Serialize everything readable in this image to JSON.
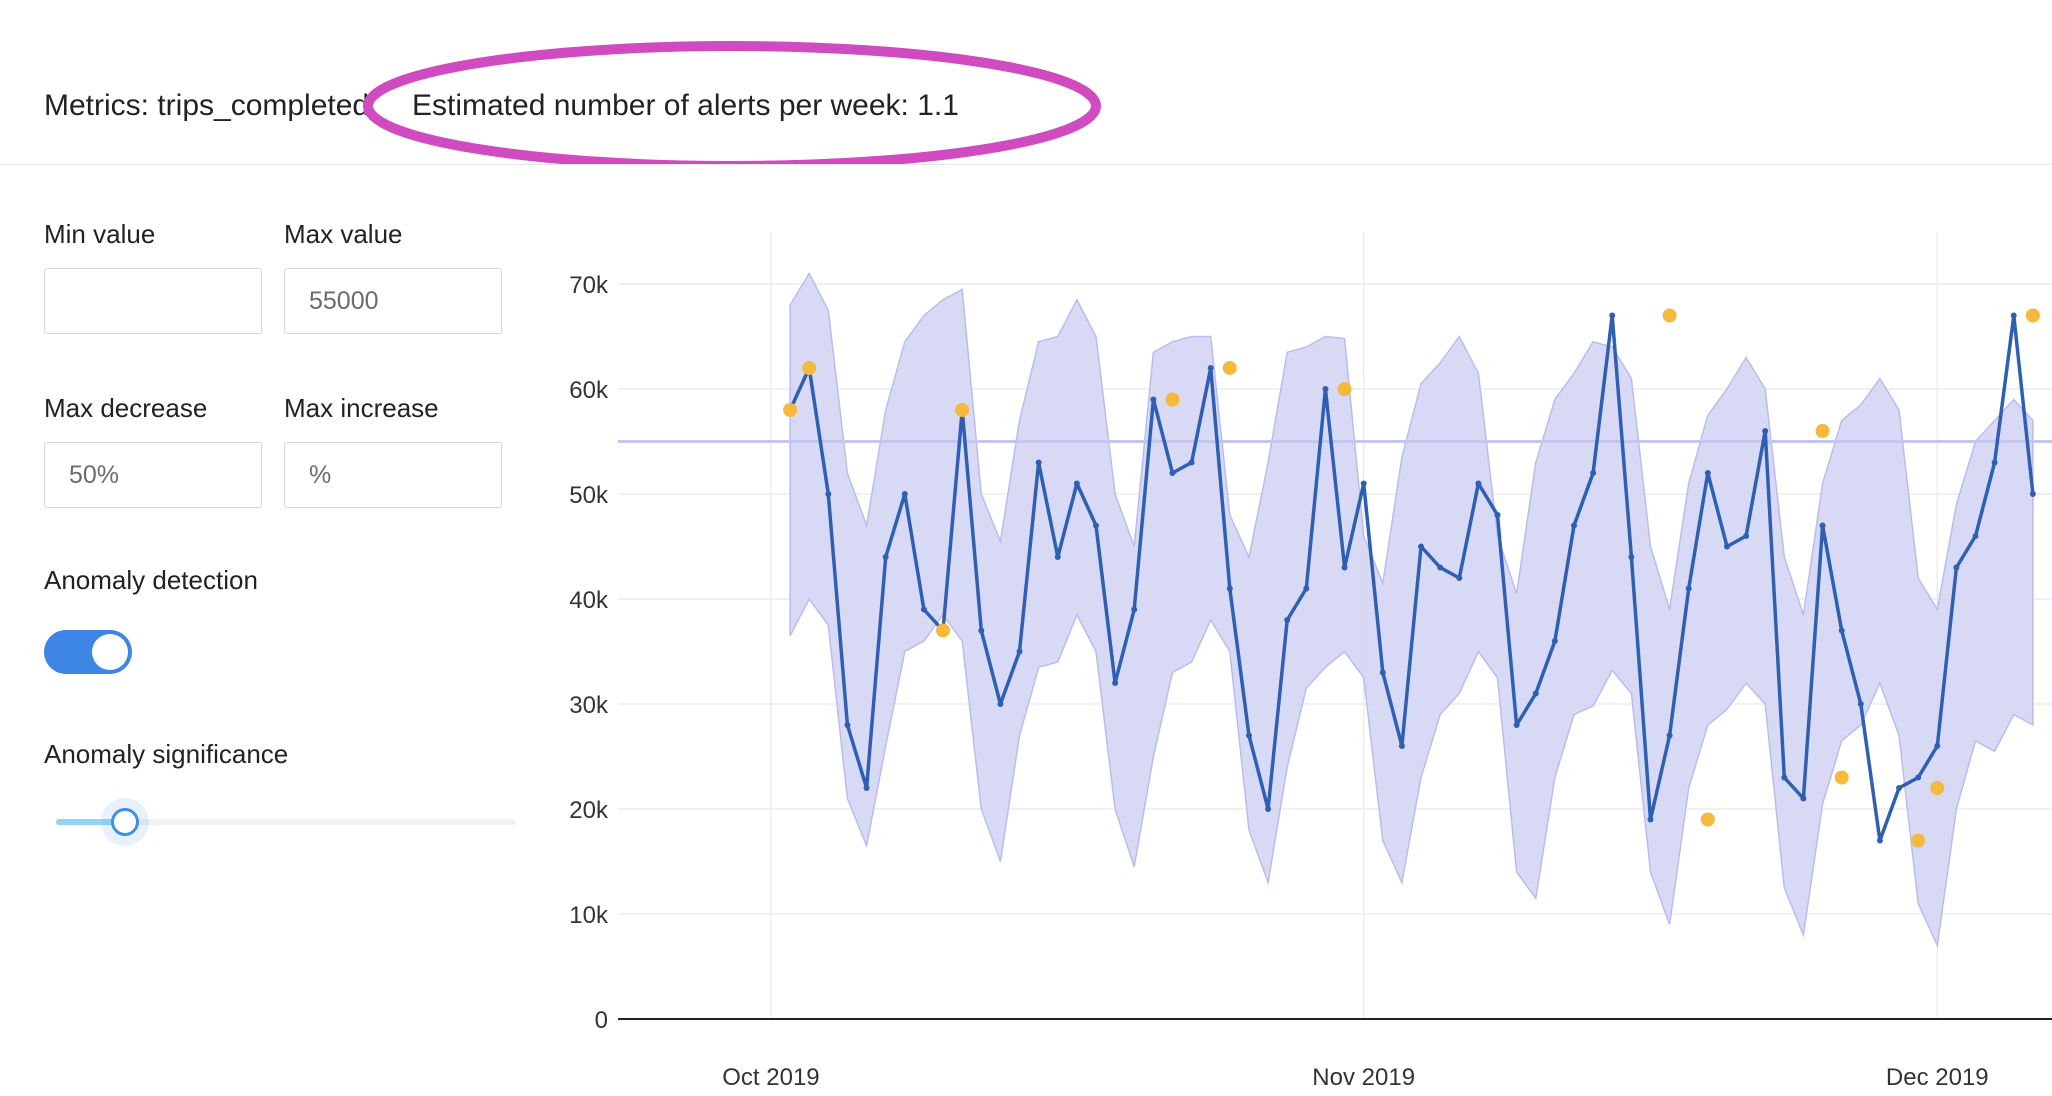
{
  "header": {
    "metrics_text": "Metrics: trips_completed",
    "alerts_text": "Estimated number of alerts per week: 1.1",
    "highlight_color": "#d04ac0"
  },
  "controls": {
    "min_value": {
      "label": "Min value",
      "value": "",
      "placeholder": ""
    },
    "max_value": {
      "label": "Max value",
      "value": "",
      "placeholder": "55000"
    },
    "max_decrease": {
      "label": "Max decrease",
      "value": "",
      "placeholder": "50%"
    },
    "max_increase": {
      "label": "Max increase",
      "value": "",
      "placeholder": "%"
    },
    "anomaly_detection": {
      "label": "Anomaly detection",
      "enabled": true
    },
    "anomaly_significance": {
      "label": "Anomaly significance",
      "fraction": 0.15
    }
  },
  "colors": {
    "accent": "#3e86e6",
    "line": "#2f5fb3",
    "band": "#d4d6f4",
    "anomaly": "#f5b93b",
    "threshold": "#c3c7f0"
  },
  "chart_data": {
    "type": "line",
    "title": "",
    "xlabel": "",
    "ylabel": "",
    "ylim": [
      0,
      70000
    ],
    "yticks": [
      0,
      10000,
      20000,
      30000,
      40000,
      50000,
      60000,
      70000
    ],
    "ytick_labels": [
      "0",
      "10k",
      "20k",
      "30k",
      "40k",
      "50k",
      "60k",
      "70k"
    ],
    "xticks": [
      "2019-10-01",
      "2019-11-01",
      "2019-12-01"
    ],
    "xtick_labels": [
      "Oct 2019",
      "Nov 2019",
      "Dec 2019"
    ],
    "xlim": [
      "2019-09-23",
      "2019-12-07"
    ],
    "grid": true,
    "threshold_line": 55000,
    "start_date": "2019-10-02",
    "series": [
      {
        "values": [
          58000,
          62000,
          50000,
          28000,
          22000,
          44000,
          50000,
          39000,
          37000,
          58000,
          37000,
          30000,
          35000,
          53000,
          44000,
          51000,
          47000,
          32000,
          39000,
          59000,
          52000,
          53000,
          62000,
          41000,
          27000,
          20000,
          38000,
          41000,
          60000,
          43000,
          51000,
          33000,
          26000,
          45000,
          43000,
          42000,
          51000,
          48000,
          28000,
          31000,
          36000,
          47000,
          52000,
          67000,
          44000,
          19000,
          27000,
          41000,
          52000,
          45000,
          46000,
          56000,
          23000,
          21000,
          47000,
          37000,
          30000,
          17000,
          22000,
          23000,
          26000,
          43000,
          46000,
          53000,
          67000,
          50000
        ]
      }
    ],
    "band_upper": [
      68000,
      71000,
      67500,
      52000,
      47000,
      58000,
      64500,
      67000,
      68500,
      69500,
      50000,
      45500,
      57000,
      64500,
      65000,
      68500,
      65000,
      50000,
      45000,
      63500,
      64500,
      65000,
      65000,
      48000,
      44000,
      53000,
      63500,
      64000,
      65000,
      64800,
      46000,
      41500,
      53500,
      60500,
      62500,
      65000,
      61500,
      46000,
      40500,
      53000,
      59000,
      61500,
      64500,
      64000,
      61000,
      45000,
      39000,
      51000,
      57500,
      60000,
      63000,
      60000,
      44000,
      38500,
      51000,
      57000,
      58500,
      61000,
      58000,
      42000,
      39000,
      49000,
      55000,
      57000,
      59000,
      57000
    ],
    "band_lower": [
      36500,
      40000,
      37500,
      21000,
      16500,
      26000,
      35000,
      36000,
      38500,
      36000,
      20000,
      15000,
      27000,
      33500,
      34000,
      38500,
      35000,
      20000,
      14500,
      25000,
      33000,
      34000,
      38000,
      35000,
      18000,
      13000,
      24000,
      31500,
      33500,
      35000,
      32500,
      17000,
      13000,
      23000,
      29000,
      31000,
      35000,
      32500,
      14000,
      11500,
      23000,
      29000,
      29800,
      33200,
      31000,
      14000,
      9000,
      22000,
      28000,
      29500,
      32000,
      30000,
      12500,
      8000,
      20500,
      26500,
      28000,
      32000,
      27000,
      11000,
      7000,
      20000,
      26500,
      25500,
      29000,
      28000
    ],
    "anomaly_dates": [
      "2019-10-02",
      "2019-10-03",
      "2019-10-10",
      "2019-10-11",
      "2019-10-22",
      "2019-10-25",
      "2019-10-31",
      "2019-11-17",
      "2019-11-19",
      "2019-11-25",
      "2019-11-26",
      "2019-11-30",
      "2019-12-01",
      "2019-12-06"
    ],
    "anomaly_values": [
      58000,
      62000,
      37000,
      58000,
      59000,
      62000,
      60000,
      67000,
      19000,
      56000,
      23000,
      17000,
      22000,
      67000
    ]
  }
}
